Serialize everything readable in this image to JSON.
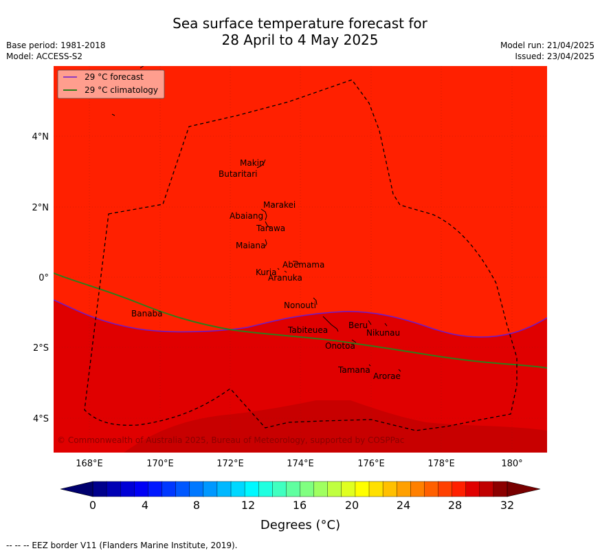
{
  "title_line1": "Sea surface temperature forecast for",
  "title_line2": "28 April to 4 May 2025",
  "base_period": "Base period: 1981-2018",
  "model": "Model: ACCESS-S2",
  "model_run": "Model run: 21/04/2025",
  "issued": "Issued: 23/04/2025",
  "legend": {
    "forecast": "29 °C  forecast",
    "climatology": "29 °C  climatology",
    "forecast_color": "#6a1bd0",
    "climatology_color": "#2e7d1a"
  },
  "x_ticks": [
    "168°E",
    "170°E",
    "172°E",
    "174°E",
    "176°E",
    "178°E",
    "180°"
  ],
  "y_ticks": [
    "4°N",
    "2°N",
    "0°",
    "2°S",
    "4°S"
  ],
  "islands": [
    {
      "name": "Makin",
      "key": "makin"
    },
    {
      "name": "Butaritari",
      "key": "butaritari"
    },
    {
      "name": "Marakei",
      "key": "marakei"
    },
    {
      "name": "Abaiang",
      "key": "abaiang"
    },
    {
      "name": "Tarawa",
      "key": "tarawa"
    },
    {
      "name": "Maiana",
      "key": "maiana"
    },
    {
      "name": "Abemama",
      "key": "abemama"
    },
    {
      "name": "Kuria",
      "key": "kuria"
    },
    {
      "name": "Aranuka",
      "key": "aranuka"
    },
    {
      "name": "Nonouti",
      "key": "nonouti"
    },
    {
      "name": "Banaba",
      "key": "banaba"
    },
    {
      "name": "Beru",
      "key": "beru"
    },
    {
      "name": "Tabiteuea",
      "key": "tabiteuea"
    },
    {
      "name": "Nikunau",
      "key": "nikunau"
    },
    {
      "name": "Onotoa",
      "key": "onotoa"
    },
    {
      "name": "Tamana",
      "key": "tamana"
    },
    {
      "name": "Arorae",
      "key": "arorae"
    }
  ],
  "credit": "© Commonwealth of Australia 2025, Bureau of Meteorology, supported by COSPPac",
  "colorbar": {
    "ticks": [
      "0",
      "4",
      "8",
      "12",
      "16",
      "20",
      "24",
      "28",
      "32"
    ],
    "title": "Degrees ($^\\circ$C)",
    "title_display": "Degrees (°C)",
    "colors": [
      "#00008c",
      "#0000b4",
      "#0000d6",
      "#0000f5",
      "#0018ff",
      "#0038ff",
      "#0058ff",
      "#0078ff",
      "#0098ff",
      "#00b8ff",
      "#00d8ff",
      "#00f8ff",
      "#20ffe0",
      "#40ffc0",
      "#60ffa0",
      "#80ff80",
      "#a0ff60",
      "#c0ff40",
      "#e0ff20",
      "#ffff00",
      "#ffe000",
      "#ffc000",
      "#ffa000",
      "#ff8000",
      "#ff6000",
      "#ff4000",
      "#ff2000",
      "#e00000",
      "#c00000",
      "#8c0000"
    ],
    "low_color": "#00006e",
    "high_color": "#780000"
  },
  "map_colors": {
    "warm_28_29": "#ff2000",
    "warm_29_30": "#e00000",
    "warm_30_31": "#c80000"
  },
  "footer": "--  --  -- EEZ border V11 (Flanders Marine Institute, 2019)."
}
